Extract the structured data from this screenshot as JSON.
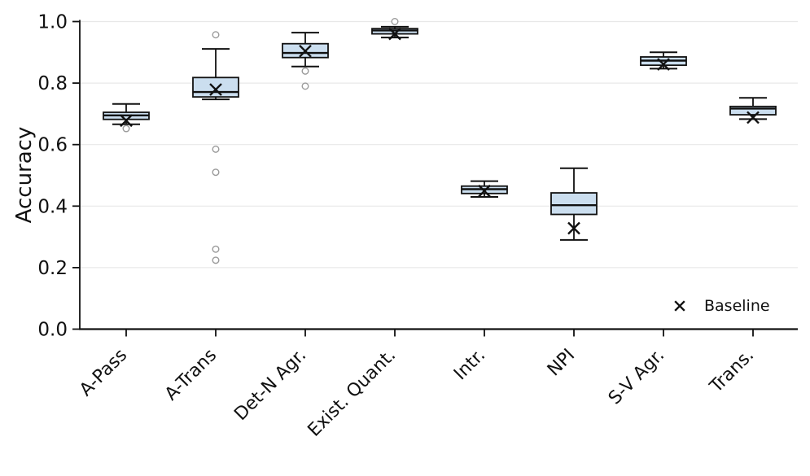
{
  "chart_data": {
    "type": "box",
    "ylabel": "Accuracy",
    "xlabel": "",
    "ylim": [
      0.0,
      1.0
    ],
    "yticks": [
      0.0,
      0.2,
      0.4,
      0.6,
      0.8,
      1.0
    ],
    "grid": "horizontal",
    "x_tick_rotation_deg": 45,
    "legend": {
      "position": "lower right",
      "entries": [
        {
          "label": "Baseline",
          "marker": "x"
        }
      ]
    },
    "categories": [
      "A-Pass",
      "A-Trans",
      "Det-N Agr.",
      "Exist. Quant.",
      "Intr.",
      "NPI",
      "S-V Agr.",
      "Trans."
    ],
    "series": [
      {
        "name": "A-Pass",
        "whisker_low": 0.666,
        "q1": 0.682,
        "median": 0.695,
        "q3": 0.705,
        "whisker_high": 0.732,
        "baseline": 0.678,
        "outliers": [
          0.652
        ]
      },
      {
        "name": "A-Trans",
        "whisker_low": 0.747,
        "q1": 0.755,
        "median": 0.771,
        "q3": 0.818,
        "whisker_high": 0.911,
        "baseline": 0.779,
        "outliers": [
          0.957,
          0.585,
          0.51,
          0.26,
          0.224
        ]
      },
      {
        "name": "Det-N Agr.",
        "whisker_low": 0.854,
        "q1": 0.883,
        "median": 0.898,
        "q3": 0.928,
        "whisker_high": 0.964,
        "baseline": 0.904,
        "outliers": [
          0.839,
          0.79
        ]
      },
      {
        "name": "Exist. Quant.",
        "whisker_low": 0.948,
        "q1": 0.96,
        "median": 0.971,
        "q3": 0.977,
        "whisker_high": 0.983,
        "baseline": 0.96,
        "outliers": [
          1.0
        ]
      },
      {
        "name": "Intr.",
        "whisker_low": 0.43,
        "q1": 0.441,
        "median": 0.455,
        "q3": 0.465,
        "whisker_high": 0.481,
        "baseline": 0.449,
        "outliers": []
      },
      {
        "name": "NPI",
        "whisker_low": 0.29,
        "q1": 0.373,
        "median": 0.403,
        "q3": 0.443,
        "whisker_high": 0.523,
        "baseline": 0.328,
        "outliers": []
      },
      {
        "name": "S-V Agr.",
        "whisker_low": 0.847,
        "q1": 0.858,
        "median": 0.873,
        "q3": 0.885,
        "whisker_high": 0.9,
        "baseline": 0.861,
        "outliers": []
      },
      {
        "name": "Trans.",
        "whisker_low": 0.683,
        "q1": 0.697,
        "median": 0.717,
        "q3": 0.724,
        "whisker_high": 0.752,
        "baseline": 0.688,
        "outliers": []
      }
    ],
    "colors": {
      "box_fill": "#cbdeef",
      "box_edge": "#111111",
      "median": "#111111",
      "baseline_marker": "#111111",
      "outlier_edge": "#9a9a9a",
      "grid": "#e8e8e8",
      "axis": "#111111",
      "text": "#111111"
    }
  }
}
